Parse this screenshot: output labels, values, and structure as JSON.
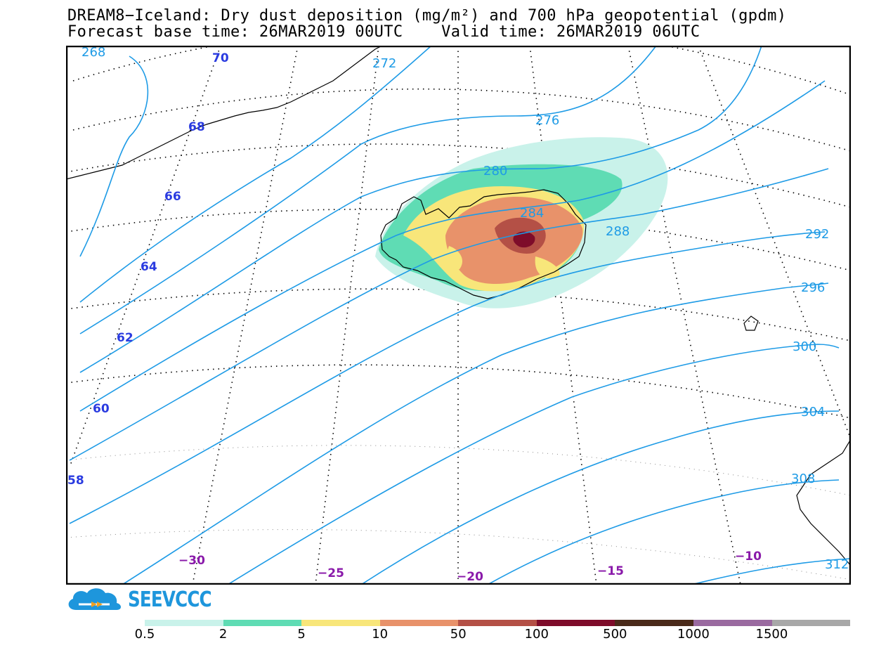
{
  "header": {
    "title_line1": "DREAM8−Iceland: Dry dust deposition (mg/m²) and 700 hPa geopotential (gpdm)",
    "title_line2": "Forecast base time: 26MAR2019 00UTC    Valid time: 26MAR2019 06UTC"
  },
  "logo": {
    "text": "SEEVCCC",
    "icon": "cloud-logo-icon",
    "color": "#1e96dc"
  },
  "map": {
    "contour_color": "#1e9be6",
    "contour_labels": [
      "268",
      "272",
      "276",
      "280",
      "284",
      "288",
      "292",
      "296",
      "300",
      "304",
      "308",
      "312"
    ],
    "latitude_labels": [
      "70",
      "68",
      "66",
      "64",
      "62",
      "60",
      "58"
    ],
    "longitude_labels": [
      "−30",
      "−25",
      "−20",
      "−15",
      "−10"
    ],
    "lat_label_color": "#2a3be0",
    "lon_label_color": "#8a1aaa"
  },
  "legend": {
    "labels": [
      "0.5",
      "2",
      "5",
      "10",
      "50",
      "100",
      "500",
      "1000",
      "1500"
    ],
    "colors": [
      "#c9f2ea",
      "#5fdcb4",
      "#f8e67a",
      "#e8926a",
      "#b45046",
      "#7e0c2a",
      "#4a2a1a",
      "#9a6aa0",
      "#a8a8a8"
    ]
  }
}
